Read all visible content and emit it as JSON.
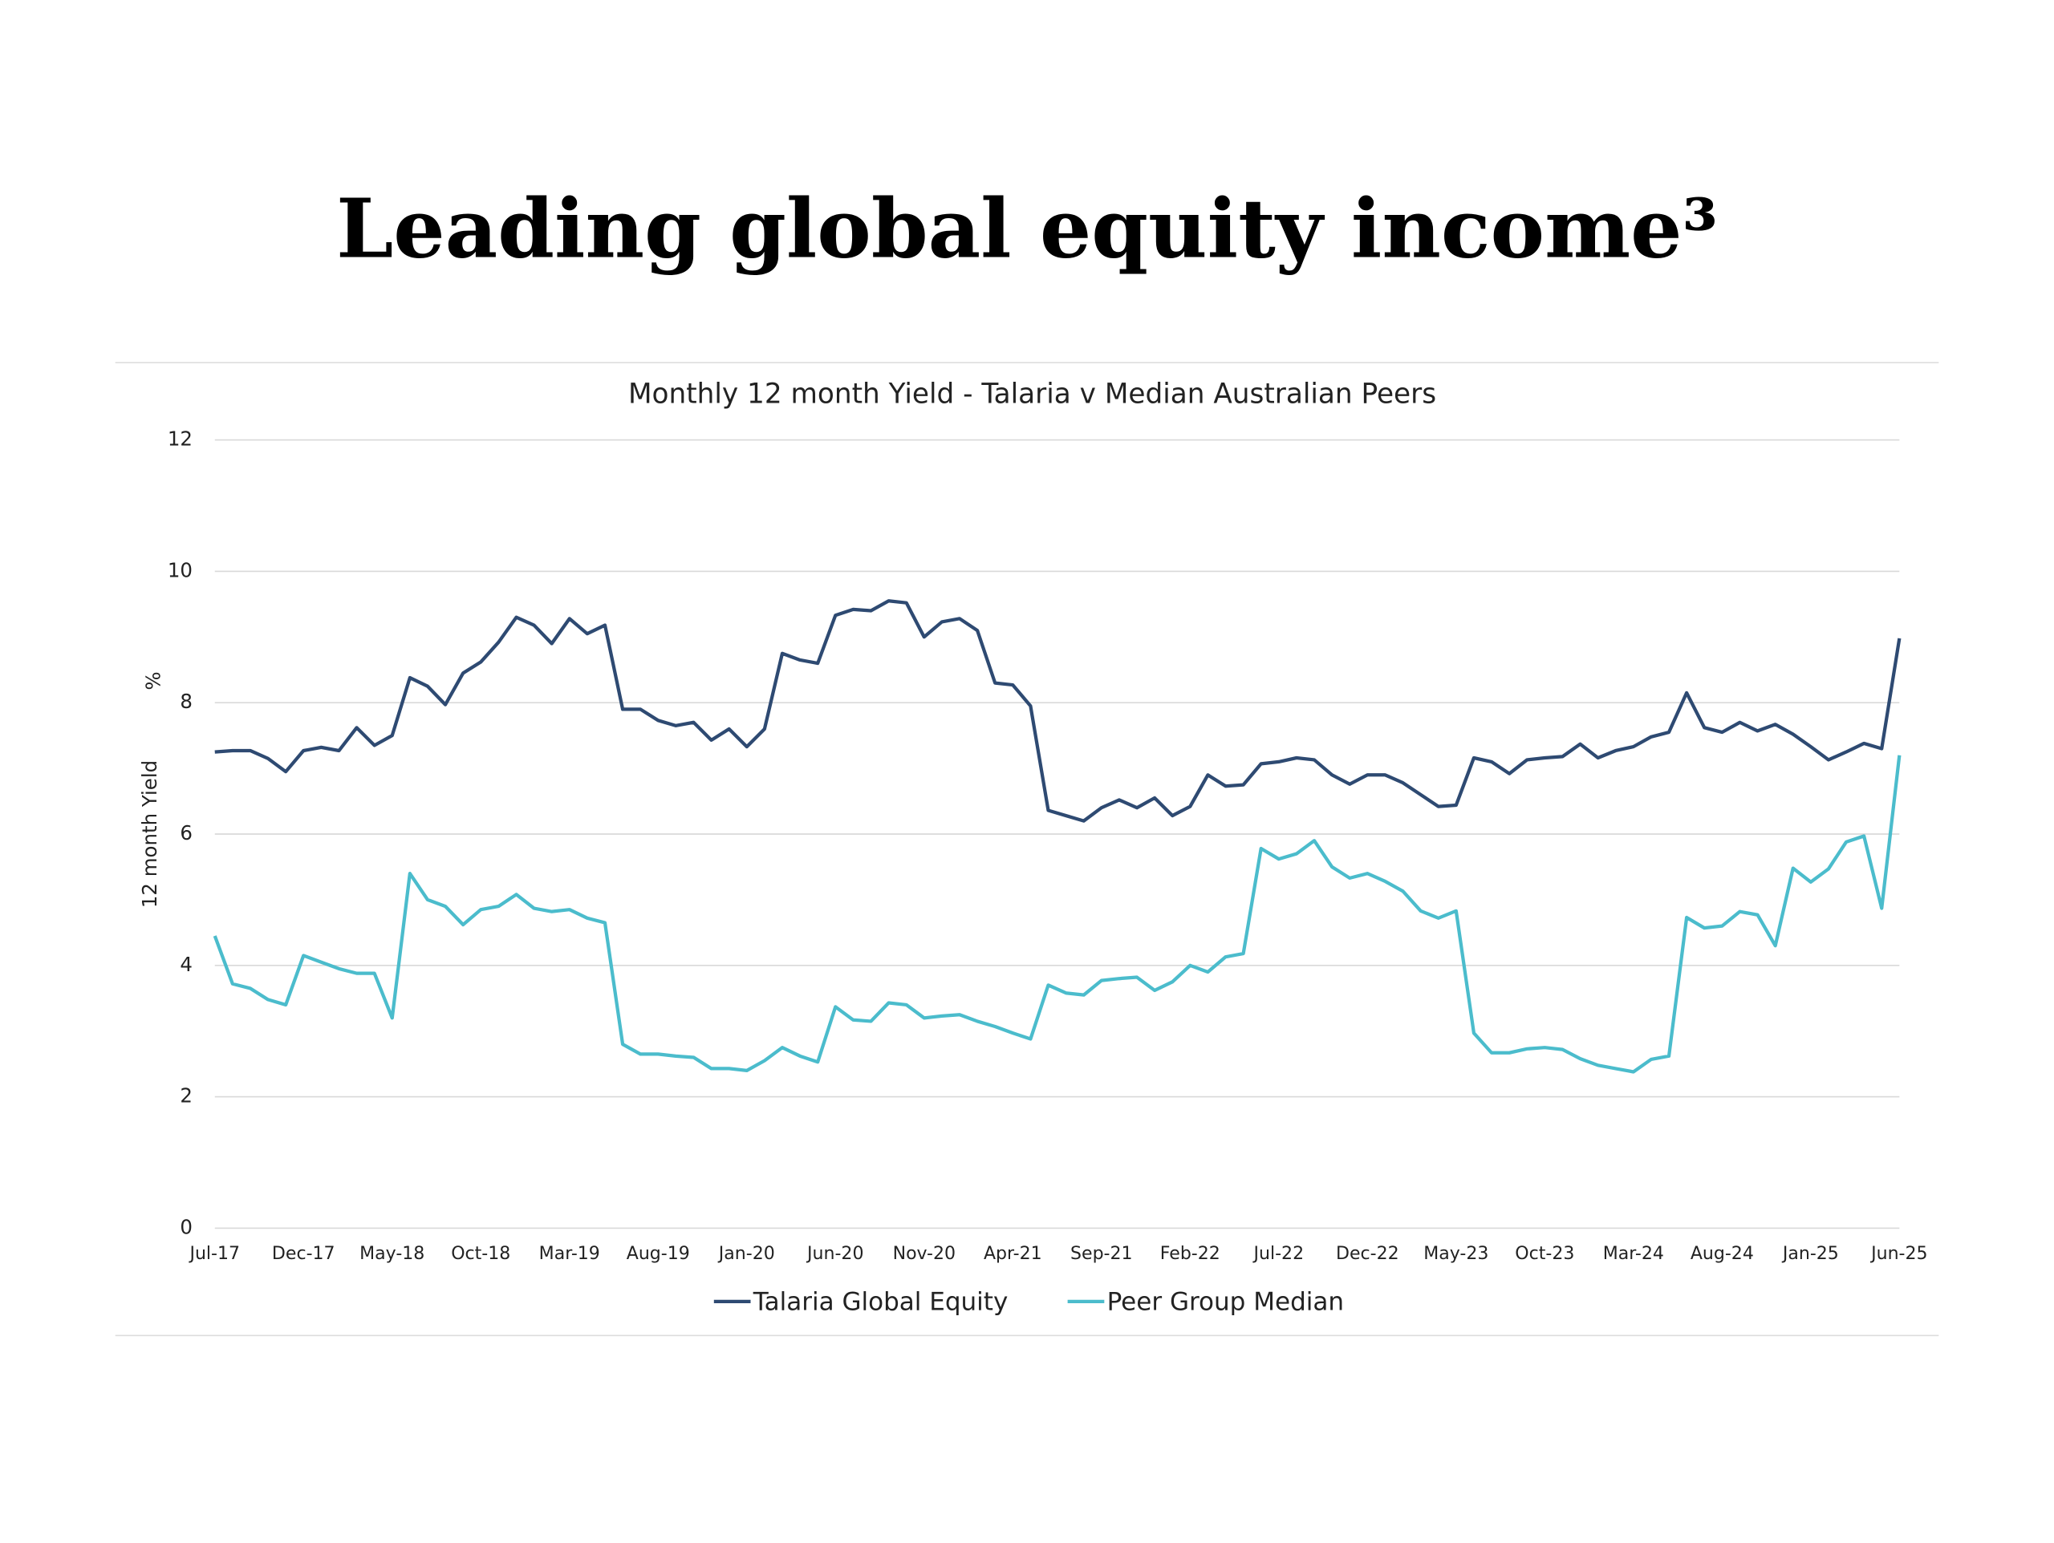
{
  "header": {
    "title": "Leading global equity income³"
  },
  "chart_data": {
    "type": "line",
    "title": "Monthly 12 month Yield - Talaria v Median Australian Peers",
    "ylabel": "12 month Yield",
    "yunit": "%",
    "categories": [
      "Jul-17",
      null,
      null,
      null,
      null,
      "Dec-17",
      null,
      null,
      null,
      null,
      "May-18",
      null,
      null,
      null,
      null,
      "Oct-18",
      null,
      null,
      null,
      null,
      "Mar-19",
      null,
      null,
      null,
      null,
      "Aug-19",
      null,
      null,
      null,
      null,
      "Jan-20",
      null,
      null,
      null,
      null,
      "Jun-20",
      null,
      null,
      null,
      null,
      "Nov-20",
      null,
      null,
      null,
      null,
      "Apr-21",
      null,
      null,
      null,
      null,
      "Sep-21",
      null,
      null,
      null,
      null,
      "Feb-22",
      null,
      null,
      null,
      null,
      "Jul-22",
      null,
      null,
      null,
      null,
      "Dec-22",
      null,
      null,
      null,
      null,
      "May-23",
      null,
      null,
      null,
      null,
      "Oct-23",
      null,
      null,
      null,
      null,
      "Mar-24",
      null,
      null,
      null,
      null,
      "Aug-24",
      null,
      null,
      null,
      null,
      "Jan-25",
      null,
      null,
      null,
      null,
      "Jun-25"
    ],
    "series": [
      {
        "name": "Talaria Global Equity",
        "color": "#2e4a72",
        "values": [
          7.25,
          7.27,
          7.27,
          7.15,
          6.95,
          7.27,
          7.32,
          7.27,
          7.62,
          7.35,
          7.5,
          8.38,
          8.25,
          7.97,
          8.45,
          8.62,
          8.92,
          9.3,
          9.18,
          8.9,
          9.28,
          9.05,
          9.18,
          7.9,
          7.9,
          7.73,
          7.65,
          7.7,
          7.43,
          7.6,
          7.33,
          7.6,
          8.75,
          8.65,
          8.6,
          9.33,
          9.42,
          9.4,
          9.55,
          9.52,
          9.0,
          9.23,
          9.28,
          9.1,
          8.3,
          8.27,
          7.95,
          6.36,
          6.28,
          6.2,
          6.4,
          6.52,
          6.4,
          6.55,
          6.28,
          6.42,
          6.9,
          6.73,
          6.75,
          7.07,
          7.1,
          7.16,
          7.13,
          6.9,
          6.76,
          6.9,
          6.9,
          6.78,
          6.6,
          6.42,
          6.44,
          7.16,
          7.1,
          6.92,
          7.13,
          7.16,
          7.18,
          7.37,
          7.16,
          7.27,
          7.33,
          7.48,
          7.55,
          8.15,
          7.62,
          7.55,
          7.7,
          7.57,
          7.67,
          7.52,
          7.33,
          7.13,
          7.25,
          7.38,
          7.3,
          8.98
        ]
      },
      {
        "name": "Peer Group Median",
        "color": "#4bbccc",
        "values": [
          4.45,
          3.72,
          3.65,
          3.48,
          3.4,
          4.15,
          4.05,
          3.95,
          3.88,
          3.88,
          3.2,
          5.4,
          5.0,
          4.9,
          4.62,
          4.85,
          4.9,
          5.08,
          4.87,
          4.82,
          4.85,
          4.72,
          4.65,
          2.8,
          2.65,
          2.65,
          2.62,
          2.6,
          2.43,
          2.43,
          2.4,
          2.55,
          2.75,
          2.62,
          2.53,
          3.37,
          3.17,
          3.15,
          3.43,
          3.4,
          3.2,
          3.23,
          3.25,
          3.15,
          3.07,
          2.97,
          2.88,
          3.7,
          3.58,
          3.55,
          3.77,
          3.8,
          3.82,
          3.62,
          3.75,
          4.0,
          3.9,
          4.13,
          4.18,
          5.78,
          5.62,
          5.7,
          5.9,
          5.5,
          5.33,
          5.4,
          5.28,
          5.13,
          4.83,
          4.72,
          4.83,
          2.97,
          2.67,
          2.67,
          2.73,
          2.75,
          2.72,
          2.58,
          2.48,
          2.43,
          2.38,
          2.57,
          2.62,
          4.73,
          4.57,
          4.6,
          4.82,
          4.77,
          4.3,
          5.48,
          5.27,
          5.47,
          5.88,
          5.97,
          4.87,
          7.2
        ]
      }
    ],
    "ylim": [
      0,
      12
    ],
    "yticks": [
      0,
      2,
      4,
      6,
      8,
      10,
      12
    ],
    "grid": true,
    "legend": "bottom"
  }
}
